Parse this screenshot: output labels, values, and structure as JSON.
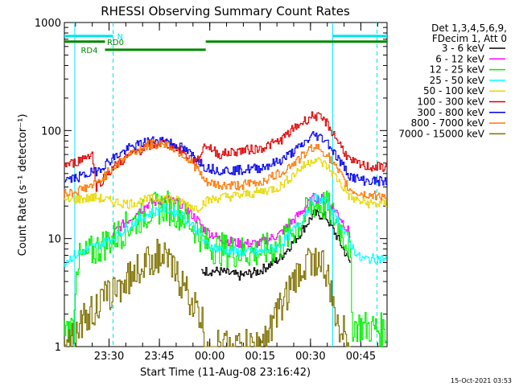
{
  "chart_data": {
    "type": "line",
    "title": "RHESSI Observing Summary Count Rates",
    "xlabel": "Start Time (11-Aug-08 23:16:42)",
    "ylabel": "Count Rate (s⁻¹ detector⁻¹)",
    "footer": "15-Oct-2021 03:53",
    "yscale": "log",
    "ylim": [
      1,
      1000
    ],
    "xlim": [
      23.27833,
      24.88
    ],
    "ytick_labels": [
      {
        "v": 1,
        "label": "1"
      },
      {
        "v": 10,
        "label": "10"
      },
      {
        "v": 100,
        "label": "100"
      },
      {
        "v": 1000,
        "label": "1000"
      }
    ],
    "xtick_labels": [
      {
        "v": 23.5,
        "label": "23:30"
      },
      {
        "v": 23.75,
        "label": "23:45"
      },
      {
        "v": 24.0,
        "label": "00:00"
      },
      {
        "v": 24.25,
        "label": "00:15"
      },
      {
        "v": 24.5,
        "label": "00:30"
      },
      {
        "v": 24.75,
        "label": "00:45"
      }
    ],
    "legend": {
      "placement": "top-right",
      "header": [
        "Det 1,3,4,5,6,9,",
        "FDecim 1, Att 0"
      ]
    },
    "flags": [
      {
        "label": "N",
        "color": "#00e5ee",
        "y": 750,
        "segments": [
          [
            23.27833,
            23.52
          ],
          [
            24.61,
            24.88
          ]
        ],
        "label_x": 23.54
      },
      {
        "label": "RD0",
        "color": "#008800",
        "y": 665,
        "segments": [
          [
            23.27833,
            23.48
          ],
          [
            23.98,
            24.88
          ]
        ],
        "label_x": 23.49
      },
      {
        "label": "RD4",
        "color": "#008800",
        "y": 560,
        "segments": [
          [
            23.48,
            23.98
          ]
        ],
        "label_x": 23.36
      }
    ],
    "vlines": [
      {
        "x": 23.33,
        "color": "#00e5ee",
        "style": "solid"
      },
      {
        "x": 23.52,
        "color": "#00e5ee",
        "style": "dashed"
      },
      {
        "x": 24.61,
        "color": "#00e5ee",
        "style": "solid"
      },
      {
        "x": 24.83,
        "color": "#00e5ee",
        "style": "dashed"
      }
    ],
    "series": [
      {
        "name": "3 - 6 keV",
        "color": "#000000",
        "x": [
          23.96,
          24.05,
          24.15,
          24.25,
          24.35,
          24.45,
          24.52,
          24.58,
          24.64,
          24.7
        ],
        "y": [
          5,
          5,
          4.5,
          5,
          6.5,
          11,
          17,
          16,
          10,
          6
        ]
      },
      {
        "name": "6 - 12 keV",
        "color": "#ff00ff",
        "x": [
          23.52,
          23.6,
          23.7,
          23.78,
          23.86,
          23.94,
          23.98,
          24.05,
          24.15,
          24.25,
          24.35,
          24.45,
          24.52,
          24.58,
          24.64,
          24.7
        ],
        "y": [
          11,
          15,
          21,
          23,
          21,
          15,
          12,
          10,
          9,
          9,
          11,
          17,
          24,
          23,
          17,
          11
        ]
      },
      {
        "name": "12 - 25 keV",
        "color": "#00ee00",
        "x": [
          23.28,
          23.33,
          23.34,
          23.52,
          23.6,
          23.7,
          23.78,
          23.86,
          23.94,
          23.98,
          24.05,
          24.15,
          24.25,
          24.35,
          24.45,
          24.52,
          24.58,
          24.64,
          24.7,
          24.71,
          24.88
        ],
        "y": [
          1.4,
          1.5,
          6,
          10,
          13,
          18,
          20,
          17,
          12,
          9,
          8,
          7.5,
          7.5,
          8.5,
          14,
          21,
          20,
          14,
          8,
          1.6,
          1.4
        ]
      },
      {
        "name": "25 - 50 keV",
        "color": "#00ffff",
        "x": [
          23.28,
          23.33,
          23.52,
          23.6,
          23.7,
          23.78,
          23.86,
          23.94,
          23.98,
          24.05,
          24.15,
          24.25,
          24.35,
          24.45,
          24.52,
          24.58,
          24.64,
          24.7,
          24.75,
          24.8,
          24.88
        ],
        "y": [
          6,
          7,
          10,
          13,
          17,
          19,
          17,
          12,
          9,
          8,
          7.5,
          7.5,
          8.5,
          14,
          24,
          22,
          15,
          9,
          6.5,
          6.5,
          6.5
        ]
      },
      {
        "name": "50 - 100 keV",
        "color": "#e8d800",
        "x": [
          23.28,
          23.33,
          23.44,
          23.52,
          23.6,
          23.7,
          23.78,
          23.86,
          23.94,
          23.98,
          24.05,
          24.15,
          24.25,
          24.35,
          24.45,
          24.52,
          24.58,
          24.64,
          24.7,
          24.75,
          24.8,
          24.88
        ],
        "y": [
          22,
          23,
          24,
          22,
          21,
          23,
          24,
          22,
          19,
          22,
          24,
          25,
          27,
          30,
          44,
          55,
          48,
          35,
          24,
          22,
          21,
          21
        ]
      },
      {
        "name": "100 - 300 keV",
        "color": "#dd0000",
        "x": [
          23.28,
          23.33,
          23.42,
          23.44,
          23.52,
          23.6,
          23.7,
          23.78,
          23.86,
          23.94,
          23.98,
          24.05,
          24.15,
          24.25,
          24.35,
          24.45,
          24.52,
          24.58,
          24.64,
          24.7,
          24.75,
          24.8,
          24.88
        ],
        "y": [
          48,
          50,
          62,
          30,
          45,
          58,
          72,
          77,
          65,
          50,
          75,
          60,
          65,
          68,
          80,
          115,
          140,
          120,
          80,
          52,
          48,
          46,
          46
        ]
      },
      {
        "name": "300 - 800 keV",
        "color": "#0000ee",
        "x": [
          23.28,
          23.33,
          23.44,
          23.52,
          23.6,
          23.7,
          23.78,
          23.86,
          23.94,
          23.98,
          24.05,
          24.15,
          24.25,
          24.35,
          24.45,
          24.52,
          24.58,
          24.64,
          24.7,
          24.75,
          24.8,
          24.88
        ],
        "y": [
          35,
          36,
          42,
          55,
          68,
          80,
          82,
          70,
          55,
          46,
          43,
          43,
          45,
          52,
          70,
          92,
          82,
          55,
          38,
          35,
          34,
          34
        ]
      },
      {
        "name": "800 - 7000 keV",
        "color": "#ff7700",
        "x": [
          23.28,
          23.33,
          23.44,
          23.52,
          23.6,
          23.7,
          23.78,
          23.86,
          23.94,
          23.98,
          24.05,
          24.15,
          24.25,
          24.35,
          24.45,
          24.52,
          24.58,
          24.64,
          24.7,
          24.75,
          24.8,
          24.88
        ],
        "y": [
          26,
          27,
          32,
          45,
          60,
          74,
          76,
          62,
          45,
          33,
          31,
          31,
          33,
          40,
          55,
          72,
          62,
          42,
          28,
          26,
          25,
          25
        ]
      },
      {
        "name": "7000 - 15000 keV",
        "color": "#7d7000",
        "x": [
          23.28,
          23.34,
          23.35,
          23.42,
          23.5,
          23.58,
          23.66,
          23.74,
          23.8,
          23.86,
          23.92,
          23.97,
          23.98,
          24.25,
          24.3,
          24.36,
          24.44,
          24.5,
          24.56,
          24.6,
          24.62,
          24.66,
          24.7
        ],
        "y": [
          1.3,
          1.3,
          1.6,
          2.1,
          3,
          4,
          5.5,
          7,
          6,
          4,
          2.5,
          1.6,
          1,
          1,
          1.4,
          2.5,
          4.5,
          6.5,
          6,
          3.5,
          2,
          1.4,
          1.2
        ]
      }
    ]
  }
}
